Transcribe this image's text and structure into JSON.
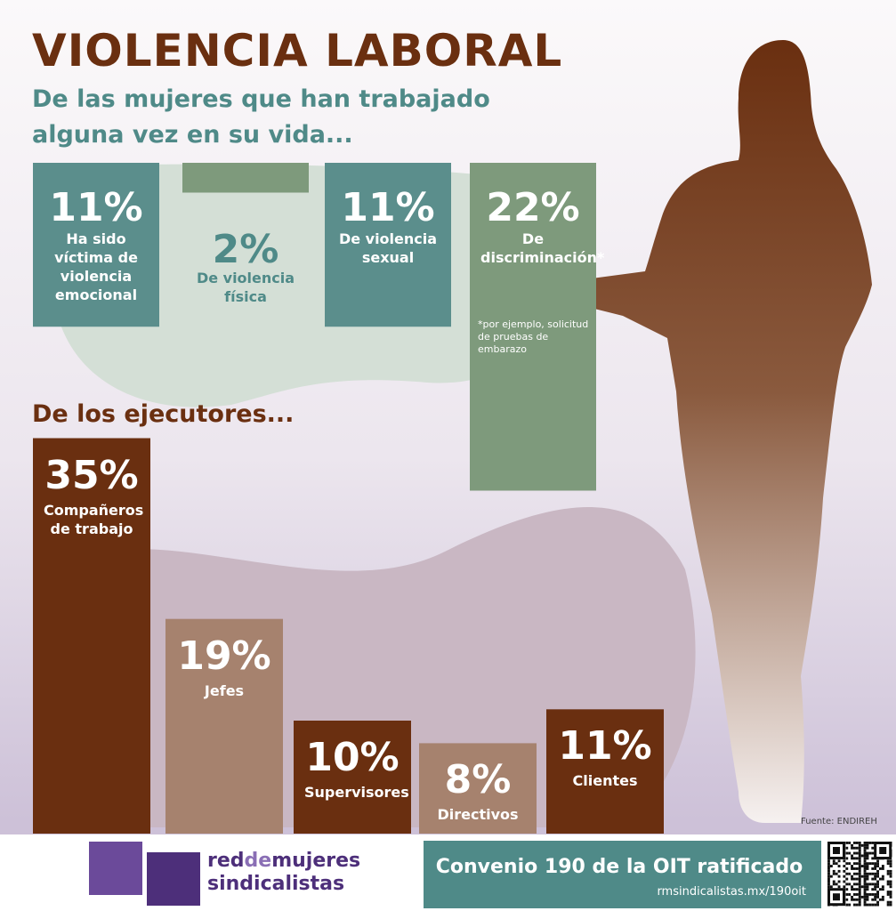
{
  "title": "VIOLENCIA LABORAL",
  "chart_data": [
    {
      "type": "bar",
      "title": "De las mujeres que han trabajado alguna vez en su vida...",
      "categories": [
        "Ha sido víctima de violencia emocional",
        "De violencia física",
        "De violencia sexual",
        "De discriminación*"
      ],
      "values": [
        11,
        2,
        11,
        22
      ],
      "value_labels": [
        "11%",
        "2%",
        "11%",
        "22%"
      ],
      "colors": [
        "#5b8e8c",
        "#7e9a7c",
        "#5b8e8c",
        "#7e9a7c"
      ],
      "annotation": "*por ejemplo, solicitud de pruebas de embarazo"
    },
    {
      "type": "bar",
      "title": "De los ejecutores...",
      "categories": [
        "Compañeros de trabajo",
        "Jefes",
        "Supervisores",
        "Directivos",
        "Clientes"
      ],
      "values": [
        35,
        19,
        10,
        8,
        11
      ],
      "value_labels": [
        "35%",
        "19%",
        "10%",
        "8%",
        "11%"
      ],
      "colors": [
        "#6a2f10",
        "#a6826e",
        "#6a2f10",
        "#a6826e",
        "#6a2f10"
      ]
    }
  ],
  "source": "Fuente: ENDIREH",
  "footer": {
    "logo": [
      "red",
      "de",
      "mujeres",
      "sindicalistas"
    ],
    "banner": "Convenio 190 de la OIT ratificado",
    "url": "rmsindicalistas.mx/190oit"
  }
}
